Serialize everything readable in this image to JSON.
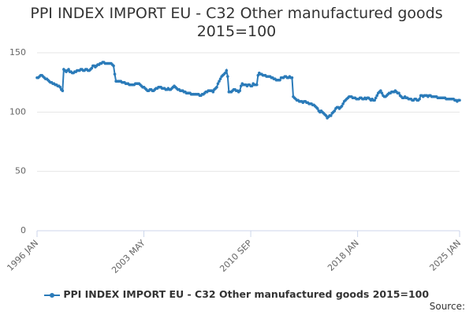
{
  "chart_data": {
    "type": "line",
    "title": "PPI INDEX IMPORT EU - C32 Other manufactured goods 2015=100",
    "source": "Source:",
    "categories": [
      "1996 JAN",
      null,
      null,
      null,
      null,
      null,
      null,
      null,
      null,
      null,
      null,
      null,
      null,
      null,
      null,
      null,
      null,
      null,
      null,
      null,
      null,
      null,
      null,
      null,
      null,
      null,
      null,
      null,
      null,
      null,
      null,
      null,
      null,
      null,
      null,
      null,
      null,
      null,
      null,
      null,
      null,
      null,
      null,
      null,
      null,
      null,
      null,
      null,
      null,
      null,
      null,
      null,
      null,
      null,
      null,
      null,
      null,
      null,
      null,
      null,
      null,
      null,
      null,
      null,
      null,
      null,
      null,
      null,
      null,
      null,
      null,
      null,
      null,
      null,
      null,
      null,
      null,
      null,
      null,
      null,
      null,
      null,
      null,
      null,
      null,
      null,
      null,
      null,
      "2003 MAY",
      null,
      null,
      null,
      null,
      null,
      null,
      null,
      null,
      null,
      null,
      null,
      null,
      null,
      null,
      null,
      null,
      null,
      null,
      null,
      null,
      null,
      null,
      null,
      null,
      null,
      null,
      null,
      null,
      null,
      null,
      null,
      null,
      null,
      null,
      null,
      null,
      null,
      null,
      null,
      null,
      null,
      null,
      null,
      null,
      null,
      null,
      null,
      null,
      null,
      null,
      null,
      null,
      null,
      null,
      null,
      null,
      null,
      null,
      null,
      null,
      null,
      null,
      null,
      null,
      null,
      null,
      null,
      null,
      null,
      null,
      null,
      null,
      null,
      null,
      null,
      null,
      null,
      null,
      null,
      null,
      null,
      null,
      null,
      null,
      null,
      null,
      null,
      "2010 SEP",
      null,
      null,
      null,
      null,
      null,
      null,
      null,
      null,
      null,
      null,
      null,
      null,
      null,
      null,
      null,
      null,
      null,
      null,
      null,
      null,
      null,
      null,
      null,
      null,
      null,
      null,
      null,
      null,
      null,
      null,
      null,
      null,
      null,
      null,
      null,
      null,
      null,
      null,
      null,
      null,
      null,
      null,
      null,
      null,
      null,
      null,
      null,
      null,
      null,
      null,
      null,
      null,
      null,
      null,
      null,
      null,
      null,
      null,
      null,
      null,
      null,
      null,
      null,
      null,
      null,
      null,
      null,
      null,
      null,
      null,
      null,
      null,
      null,
      null,
      null,
      null,
      null,
      null,
      null,
      null,
      null,
      null,
      null,
      null,
      null,
      null,
      null,
      "2018 JAN",
      null,
      null,
      null,
      null,
      null,
      null,
      null,
      null,
      null,
      null,
      null,
      null,
      null,
      null,
      null,
      null,
      null,
      null,
      null,
      null,
      null,
      null,
      null,
      null,
      null,
      null,
      null,
      null,
      null,
      null,
      null,
      null,
      null,
      null,
      null,
      null,
      null,
      null,
      null,
      null,
      null,
      null,
      null,
      null,
      null,
      null,
      null,
      null,
      null,
      null,
      null,
      null,
      null,
      null,
      null,
      null,
      null,
      null,
      null,
      null,
      null,
      null,
      null,
      null,
      null,
      null,
      null,
      null,
      null,
      null,
      null,
      null,
      null,
      null,
      null,
      null,
      null,
      null,
      null,
      null,
      null,
      null,
      null,
      "2025 JAN"
    ],
    "series": [
      {
        "name": "PPI INDEX IMPORT EU - C32 Other manufactured goods 2015=100",
        "color": "#2b7bb9",
        "values": [
          129,
          129,
          130,
          131,
          131,
          130,
          129,
          128,
          128,
          127,
          126,
          125,
          125,
          124,
          124,
          123,
          123,
          122,
          122,
          121,
          119,
          118,
          136,
          135,
          134,
          135,
          136,
          134,
          134,
          133,
          133,
          134,
          134,
          135,
          135,
          135,
          136,
          136,
          135,
          135,
          136,
          136,
          135,
          135,
          136,
          137,
          139,
          139,
          138,
          139,
          140,
          140,
          141,
          141,
          142,
          142,
          141,
          141,
          141,
          141,
          141,
          141,
          140,
          139,
          132,
          126,
          126,
          126,
          126,
          126,
          125,
          125,
          125,
          124,
          124,
          124,
          123,
          123,
          123,
          123,
          123,
          124,
          124,
          124,
          124,
          123,
          122,
          121,
          121,
          120,
          119,
          118,
          118,
          119,
          119,
          118,
          118,
          119,
          120,
          120,
          121,
          121,
          121,
          120,
          120,
          120,
          119,
          119,
          120,
          119,
          119,
          120,
          121,
          122,
          121,
          120,
          119,
          119,
          118,
          118,
          118,
          117,
          117,
          116,
          116,
          116,
          116,
          115,
          115,
          115,
          115,
          115,
          115,
          115,
          114,
          114,
          115,
          115,
          116,
          117,
          117,
          118,
          118,
          118,
          118,
          117,
          119,
          120,
          121,
          124,
          126,
          128,
          130,
          131,
          132,
          133,
          135,
          130,
          117,
          117,
          117,
          118,
          119,
          119,
          118,
          118,
          117,
          118,
          122,
          124,
          123,
          123,
          123,
          122,
          123,
          123,
          122,
          122,
          124,
          123,
          123,
          123,
          131,
          133,
          132,
          132,
          131,
          131,
          131,
          130,
          130,
          130,
          130,
          129,
          129,
          128,
          128,
          127,
          127,
          127,
          127,
          129,
          129,
          129,
          130,
          130,
          129,
          129,
          130,
          129,
          129,
          113,
          112,
          111,
          110,
          110,
          109,
          109,
          109,
          108,
          109,
          109,
          108,
          108,
          107,
          107,
          107,
          106,
          106,
          105,
          104,
          103,
          101,
          100,
          101,
          100,
          99,
          98,
          97,
          95,
          96,
          97,
          97,
          99,
          100,
          101,
          103,
          104,
          104,
          103,
          104,
          105,
          107,
          109,
          110,
          111,
          112,
          113,
          113,
          113,
          112,
          112,
          112,
          111,
          111,
          111,
          112,
          112,
          111,
          111,
          112,
          111,
          112,
          112,
          111,
          110,
          111,
          110,
          110,
          112,
          114,
          116,
          117,
          118,
          116,
          114,
          113,
          113,
          114,
          115,
          116,
          116,
          117,
          117,
          117,
          118,
          117,
          116,
          116,
          114,
          113,
          112,
          112,
          113,
          112,
          112,
          111,
          111,
          111,
          110,
          110,
          111,
          111,
          110,
          110,
          111,
          114,
          114,
          113,
          114,
          114,
          114,
          113,
          114,
          114,
          113,
          113,
          113,
          113,
          113,
          112,
          112,
          112,
          112,
          112,
          112,
          112,
          111,
          111,
          111,
          111,
          111,
          111,
          111,
          110,
          110,
          109,
          110,
          110
        ]
      }
    ],
    "ylim": [
      0,
      150
    ],
    "yticks": [
      0,
      50,
      100,
      150
    ],
    "grid": true,
    "legend": "bottom"
  }
}
